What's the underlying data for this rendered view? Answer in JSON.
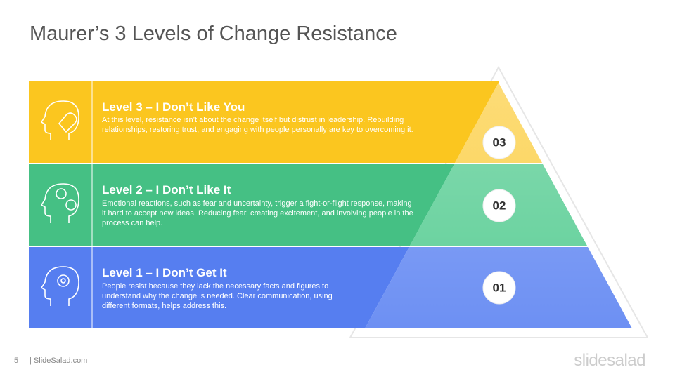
{
  "title": "Maurer’s 3 Levels of Change Resistance",
  "levels": [
    {
      "number": "03",
      "heading": "Level 3 – I Don’t Like You",
      "description": "At this level, resistance isn’t about the change itself but distrust in leadership. Rebuilding relationships, restoring trust, and engaging with people personally are key to overcoming it."
    },
    {
      "number": "02",
      "heading": "Level 2 – I Don’t Like It",
      "description": "Emotional reactions, such as fear and uncertainty, trigger a fight-or-flight response, making it hard to accept new ideas. Reducing fear, creating excitement, and involving people in the process can help."
    },
    {
      "number": "01",
      "heading": "Level 1 – I Don’t Get It",
      "description": "People resist because they lack the necessary facts and figures to understand why the change is needed. Clear communication, using different formats, helps address this."
    }
  ],
  "footer": {
    "page": "5",
    "site": "| SlideSalad.com",
    "logo": "slidesalad"
  }
}
